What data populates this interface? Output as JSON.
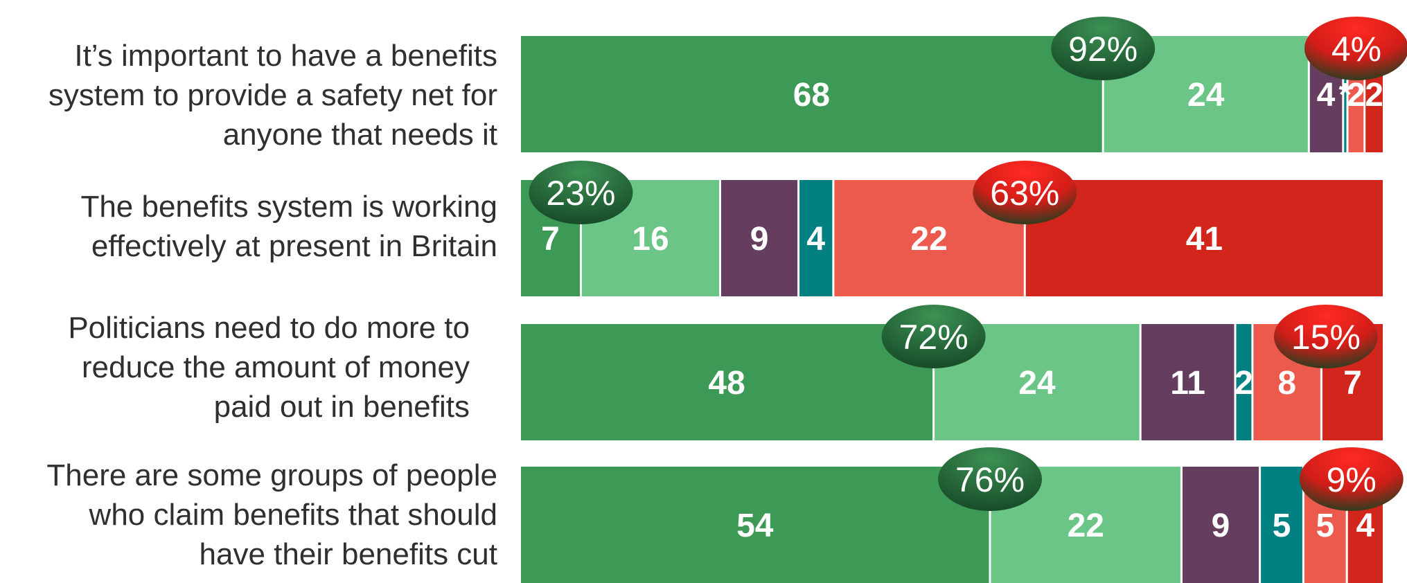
{
  "chart_data": {
    "type": "bar",
    "stacked": true,
    "orientation": "horizontal",
    "legend": "none",
    "grid": false,
    "xlim": [
      0,
      100
    ],
    "series_colors": [
      "#3d9956",
      "#6ac587",
      "#653d5e",
      "#008080",
      "#ec5a4e",
      "#d2261c"
    ],
    "rows": [
      {
        "label_lines": [
          "It’s important to have a benefits",
          "system to provide a safety net for",
          "anyone that needs it"
        ],
        "values": [
          68,
          24,
          4,
          0.5,
          2,
          2
        ],
        "display": [
          "68",
          "24",
          "4",
          "*",
          "2",
          "2"
        ],
        "net_agree": "92%",
        "net_disagree": "4%"
      },
      {
        "label_lines": [
          "The benefits system is working",
          "effectively at present in Britain"
        ],
        "values": [
          7,
          16,
          9,
          4,
          22,
          41
        ],
        "display": [
          "7",
          "16",
          "9",
          "4",
          "22",
          "41"
        ],
        "net_agree": "23%",
        "net_disagree": "63%"
      },
      {
        "label_lines": [
          "Politicians need to do more to",
          "reduce the amount of money",
          "paid out in benefits"
        ],
        "values": [
          48,
          24,
          11,
          2,
          8,
          7
        ],
        "display": [
          "48",
          "24",
          "11",
          "2",
          "8",
          "7"
        ],
        "net_agree": "72%",
        "net_disagree": "15%"
      },
      {
        "label_lines": [
          "There are some groups of people",
          "who claim benefits that should",
          "have their benefits cut"
        ],
        "values": [
          54,
          22,
          9,
          5,
          5,
          4
        ],
        "display": [
          "54",
          "22",
          "9",
          "5",
          "5",
          "4"
        ],
        "net_agree": "76%",
        "net_disagree": "9%"
      }
    ]
  }
}
